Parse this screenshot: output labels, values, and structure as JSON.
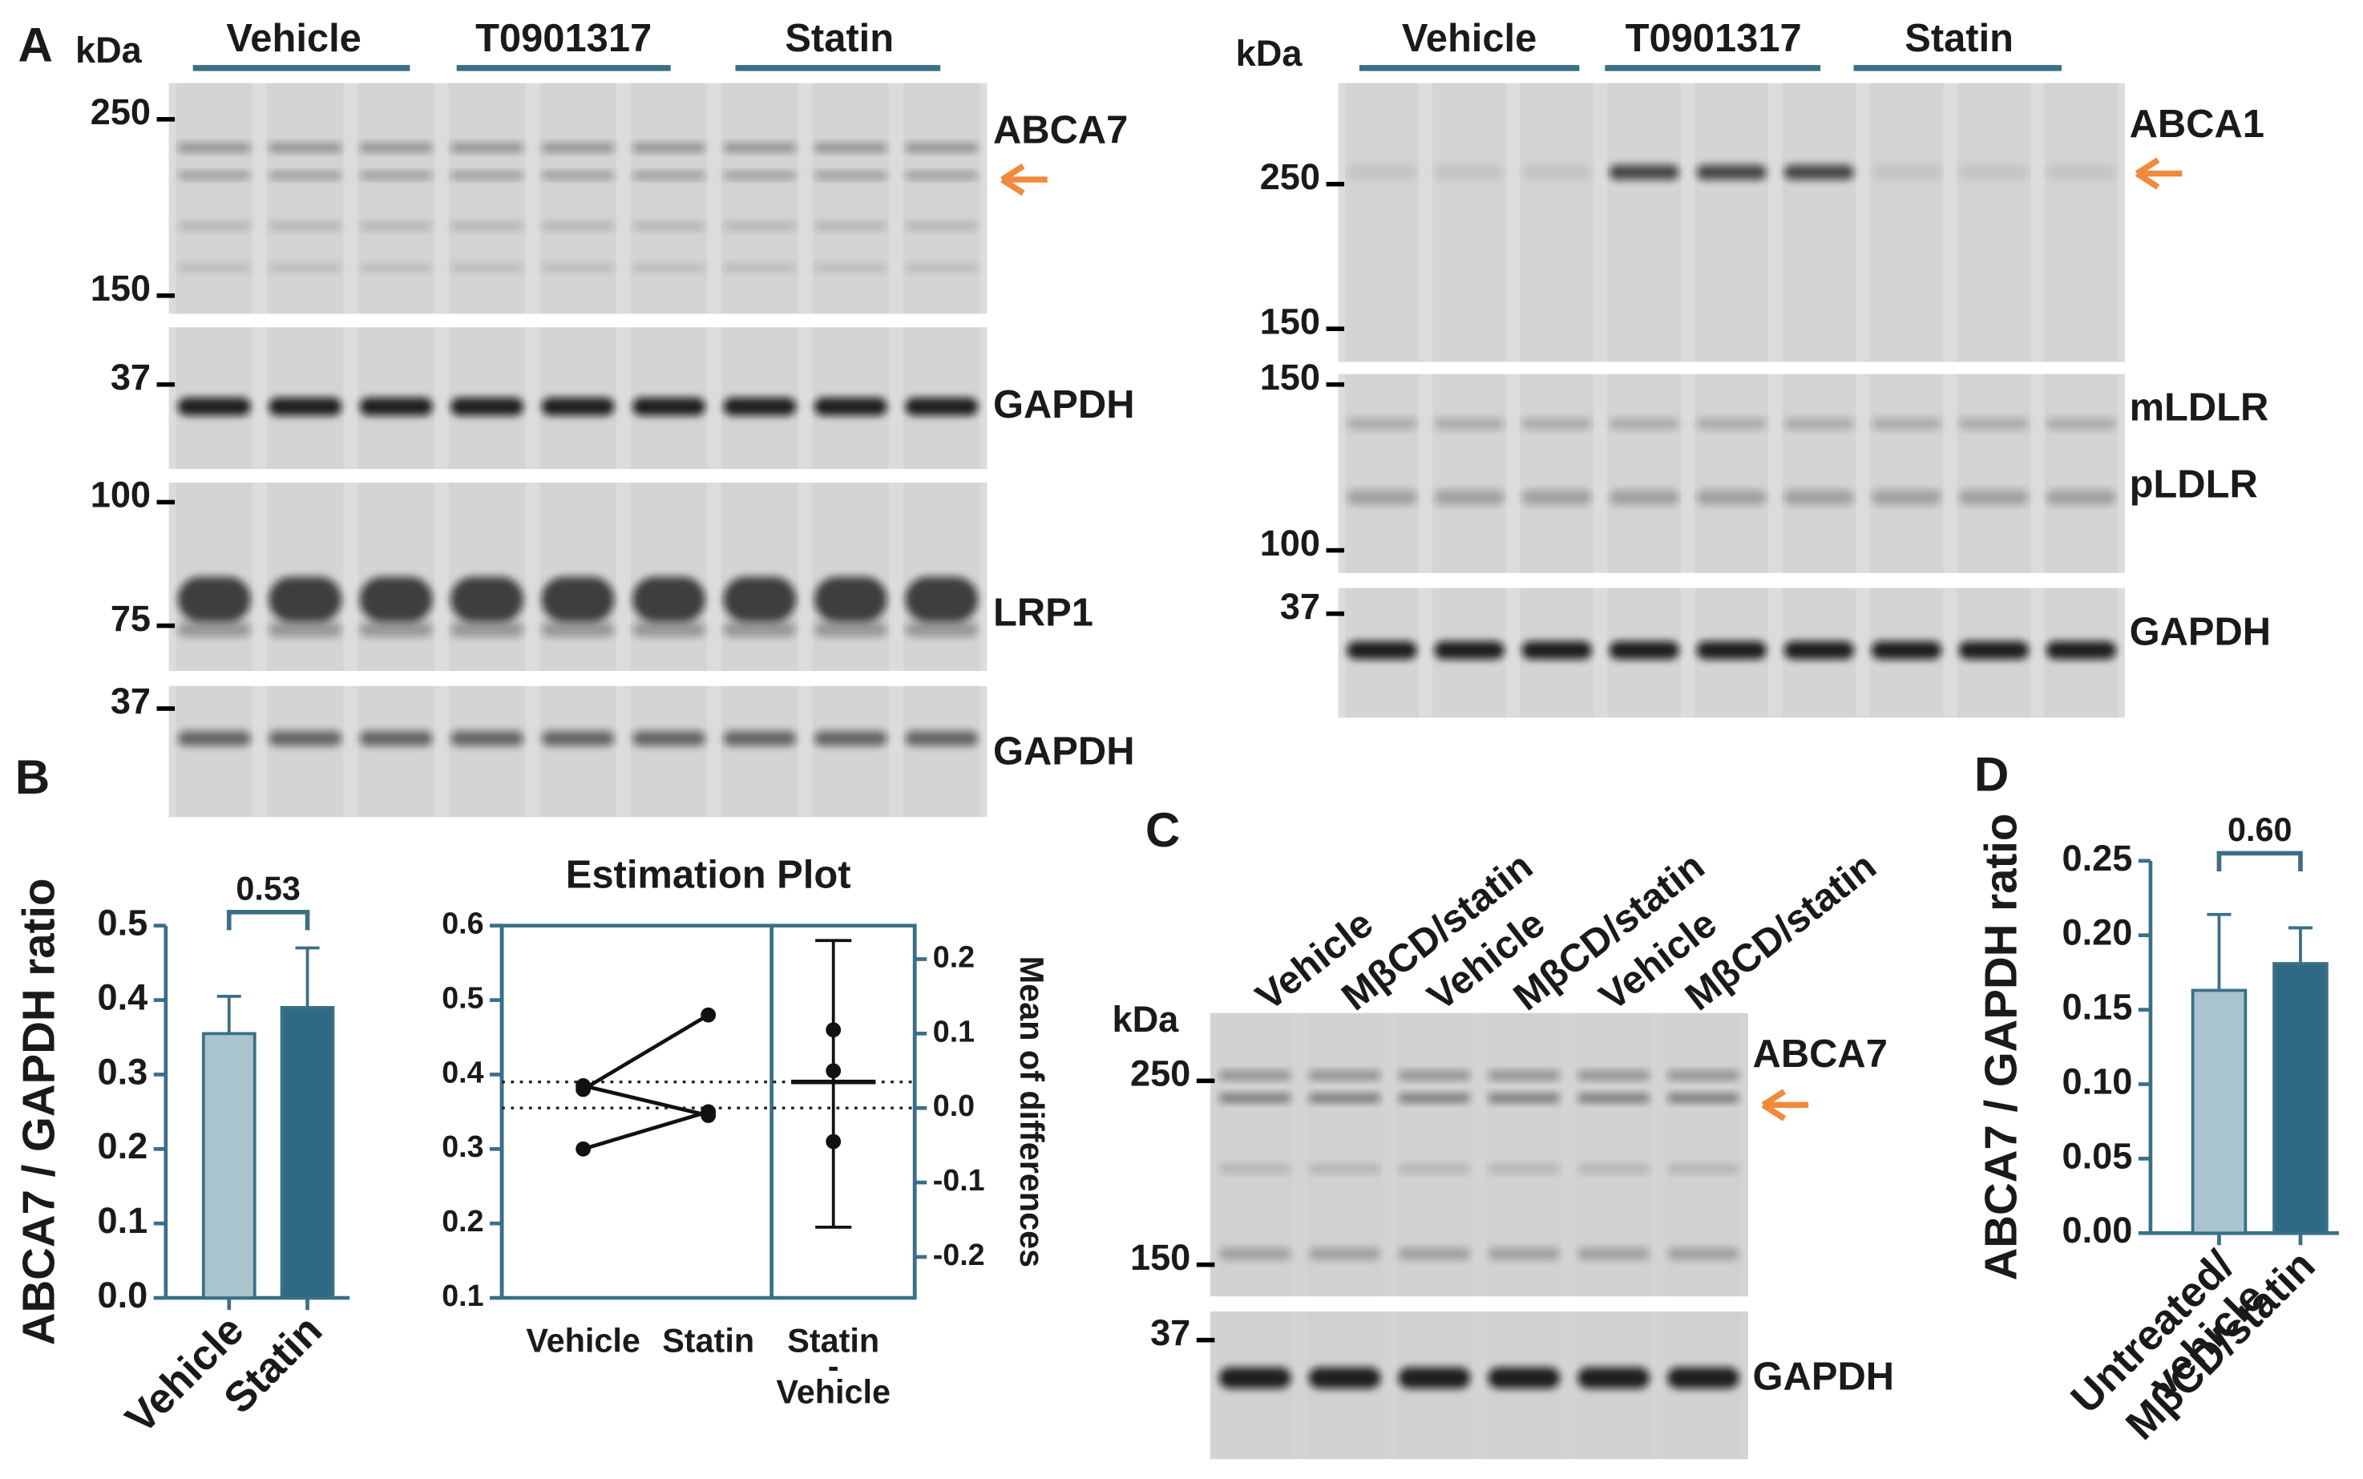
{
  "panel_labels": [
    "A",
    "B",
    "C",
    "D"
  ],
  "blot_a_left": {
    "unit": "kDa",
    "groups": [
      "Vehicle",
      "T0901317",
      "Statin"
    ],
    "markers": [
      "250",
      "150",
      "37",
      "100",
      "75",
      "37"
    ],
    "proteins": [
      "ABCA7",
      "GAPDH",
      "LRP1",
      "GAPDH"
    ]
  },
  "blot_a_right": {
    "unit": "kDa",
    "groups": [
      "Vehicle",
      "T0901317",
      "Statin"
    ],
    "markers": [
      "250",
      "150",
      "150",
      "100",
      "37"
    ],
    "proteins": [
      "ABCA1",
      "mLDLR",
      "pLDLR",
      "GAPDH"
    ]
  },
  "blot_c": {
    "unit": "kDa",
    "lanes": [
      "Vehicle",
      "MβCD/statin",
      "Vehicle",
      "MβCD/statin",
      "Vehicle",
      "MβCD/statin"
    ],
    "markers": [
      "250",
      "150",
      "37"
    ],
    "proteins": [
      "ABCA7",
      "GAPDH"
    ]
  },
  "chart_data": [
    {
      "type": "bar",
      "ylabel": "ABCA7 / GAPDH ratio",
      "categories": [
        "Vehicle",
        "Statin"
      ],
      "values": [
        0.355,
        0.39
      ],
      "errors": [
        0.05,
        0.08
      ],
      "colors": [
        "#a9c4ce",
        "#2e6a84"
      ],
      "ylim": [
        0,
        0.5
      ],
      "yticks": [
        {
          "value": 0,
          "label": "0.0"
        },
        0.1,
        0.2,
        0.3,
        0.4,
        0.5
      ],
      "annotation": "0.53"
    },
    {
      "type": "estimation",
      "title": "Estimation Plot",
      "categories": [
        "Vehicle",
        "Statin"
      ],
      "diff_label": [
        "Statin",
        "-",
        "Vehicle"
      ],
      "pairs": [
        [
          0.38,
          0.48
        ],
        [
          0.385,
          0.345
        ],
        [
          0.3,
          0.35
        ]
      ],
      "group_means": [
        0.355,
        0.39
      ],
      "differences": [
        0.105,
        -0.045,
        0.05
      ],
      "mean_difference": 0.035,
      "ci": [
        -0.16,
        0.225
      ],
      "ylim": [
        0.1,
        0.6
      ],
      "yticks": [
        0.1,
        0.2,
        0.3,
        0.4,
        0.5,
        0.6
      ],
      "y2label": "Mean of differences",
      "y2lim": [
        -0.255,
        0.245
      ],
      "y2ticks": [
        -0.2,
        -0.1,
        {
          "value": 0,
          "label": "0.0"
        },
        0.1,
        0.2
      ],
      "color": "#2e6a84"
    },
    {
      "type": "bar",
      "ylabel": "ABCA7 / GAPDH ratio",
      "categories": [
        "Untreated/\nvehicle",
        "MβCD/statin"
      ],
      "values": [
        0.163,
        0.181
      ],
      "errors": [
        0.051,
        0.024
      ],
      "colors": [
        "#a9c4ce",
        "#2e6a84"
      ],
      "ylim": [
        0,
        0.25
      ],
      "yticks": [
        {
          "value": 0,
          "label": "0.00"
        },
        {
          "value": 0.05,
          "label": "0.05"
        },
        {
          "value": 0.1,
          "label": "0.10"
        },
        {
          "value": 0.15,
          "label": "0.15"
        },
        {
          "value": 0.2,
          "label": "0.20"
        },
        {
          "value": 0.25,
          "label": "0.25"
        }
      ],
      "annotation": "0.60"
    }
  ]
}
